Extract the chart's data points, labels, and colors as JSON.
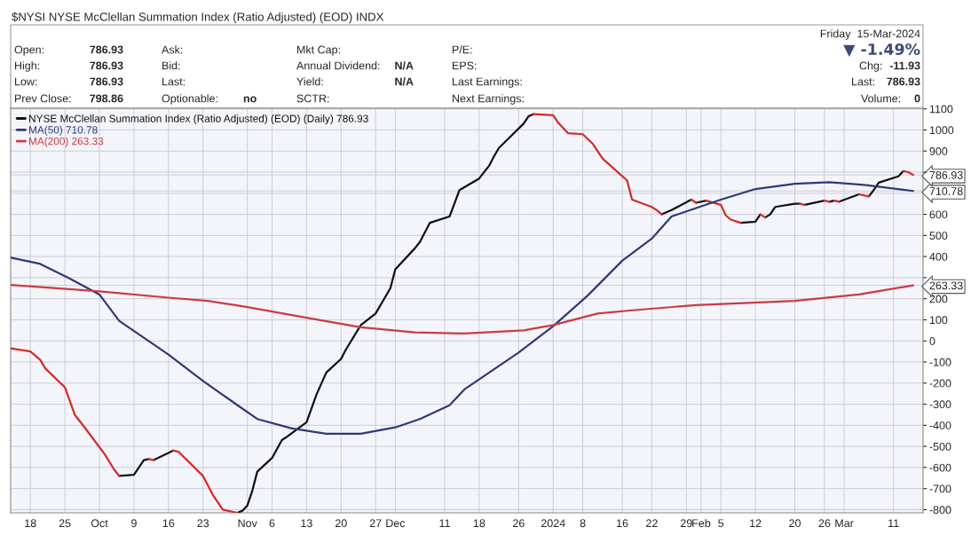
{
  "chart_data": {
    "type": "line",
    "title": "$NYSI NYSE McClellan Summation Index (Ratio Adjusted) (EOD) INDX",
    "annotations": [
      "Open:",
      "786.93",
      "High:",
      "786.93",
      "Low:",
      "786.93",
      "Prev Close:",
      "798.86",
      "Ask:",
      "Bid:",
      "Last:",
      "Optionable:",
      "no",
      "Mkt Cap:",
      "Annual Dividend:",
      "N/A",
      "Yield:",
      "N/A",
      "SCTR:",
      "P/E:",
      "EPS:",
      "Last Earnings:",
      "Next Earnings:",
      "Friday  15-Mar-2024",
      "▼ -1.49%",
      "Chg:",
      "-11.93",
      "Last:",
      "786.93",
      "Volume:",
      "0"
    ],
    "series": [
      {
        "name": "NYSE McClellan Summation Index (Ratio Adjusted) (EOD) (Daily) 786.93",
        "color": "#111111",
        "x": [
          "2023-10-30",
          "2023-10-31",
          "2023-11-01",
          "2023-11-02",
          "2023-11-03",
          "2023-11-06",
          "2023-11-08",
          "2023-11-09",
          "2023-11-13",
          "2023-11-15",
          "2023-11-17",
          "2023-11-20",
          "2023-11-21",
          "2023-11-24",
          "2023-11-27",
          "2023-11-30",
          "2023-12-01",
          "2023-12-05",
          "2023-12-06",
          "2023-12-08",
          "2023-12-12",
          "2023-12-14",
          "2023-12-18",
          "2023-12-20",
          "2023-12-21",
          "2023-12-22",
          "2023-12-27",
          "2023-12-28",
          "2023-12-29"
        ],
        "values": [
          -815,
          -805,
          -780,
          -710,
          -620,
          -555,
          -470,
          -455,
          -385,
          -255,
          -150,
          -85,
          -40,
          75,
          130,
          250,
          340,
          440,
          470,
          560,
          590,
          715,
          770,
          830,
          875,
          915,
          1030,
          1065,
          1075
        ]
      },
      {
        "color": "#111111",
        "x": [
          "2023-10-06",
          "2023-10-09",
          "2023-10-11",
          "2023-10-12"
        ],
        "values": [
          -640,
          -635,
          -565,
          -560
        ]
      },
      {
        "color": "#111111",
        "x": [
          "2023-10-13",
          "2023-10-17"
        ],
        "values": [
          -565,
          -520
        ]
      },
      {
        "color": "#111111",
        "x": [
          "2024-01-24",
          "2024-01-26",
          "2024-01-30"
        ],
        "values": [
          600,
          620,
          670
        ]
      },
      {
        "color": "#111111",
        "x": [
          "2024-01-31",
          "2024-02-02"
        ],
        "values": [
          655,
          665
        ]
      },
      {
        "color": "#111111",
        "x": [
          "2024-02-09",
          "2024-02-12",
          "2024-02-13"
        ],
        "values": [
          560,
          565,
          600
        ]
      },
      {
        "color": "#111111",
        "x": [
          "2024-02-14",
          "2024-02-15",
          "2024-02-16",
          "2024-02-20",
          "2024-02-21"
        ],
        "values": [
          585,
          600,
          635,
          650,
          650
        ]
      },
      {
        "color": "#111111",
        "x": [
          "2024-02-22",
          "2024-02-26"
        ],
        "values": [
          645,
          665
        ]
      },
      {
        "color": "#111111",
        "x": [
          "2024-02-27",
          "2024-02-28"
        ],
        "values": [
          660,
          665
        ]
      },
      {
        "color": "#111111",
        "x": [
          "2024-02-29",
          "2024-03-04"
        ],
        "values": [
          660,
          695
        ]
      },
      {
        "color": "#111111",
        "x": [
          "2024-03-06",
          "2024-03-07",
          "2024-03-08",
          "2024-03-12",
          "2024-03-13"
        ],
        "values": [
          685,
          715,
          750,
          780,
          805
        ]
      },
      {
        "color": "#d42a2a",
        "x": [
          "2023-09-14",
          "2023-09-18",
          "2023-09-20",
          "2023-09-21",
          "2023-09-25",
          "2023-09-27",
          "2023-09-29",
          "2023-10-03",
          "2023-10-05",
          "2023-10-06"
        ],
        "values": [
          -35,
          -50,
          -90,
          -130,
          -220,
          -350,
          -410,
          -535,
          -610,
          -640
        ]
      },
      {
        "color": "#d42a2a",
        "x": [
          "2023-10-12",
          "2023-10-13"
        ],
        "values": [
          -560,
          -565
        ]
      },
      {
        "color": "#d42a2a",
        "x": [
          "2023-10-17",
          "2023-10-18",
          "2023-10-23",
          "2023-10-25",
          "2023-10-27",
          "2023-10-30"
        ],
        "values": [
          -520,
          -525,
          -640,
          -730,
          -800,
          -815
        ]
      },
      {
        "color": "#d42a2a",
        "x": [
          "2023-12-29",
          "2024-01-02",
          "2024-01-03",
          "2024-01-05",
          "2024-01-08",
          "2024-01-10",
          "2024-01-12",
          "2024-01-17",
          "2024-01-18",
          "2024-01-22",
          "2024-01-23",
          "2024-01-24"
        ],
        "values": [
          1075,
          1070,
          1035,
          985,
          980,
          935,
          865,
          760,
          670,
          635,
          620,
          600
        ]
      },
      {
        "color": "#d42a2a",
        "x": [
          "2024-01-30",
          "2024-01-31"
        ],
        "values": [
          670,
          655
        ]
      },
      {
        "color": "#d42a2a",
        "x": [
          "2024-02-02",
          "2024-02-05",
          "2024-02-06",
          "2024-02-07",
          "2024-02-09"
        ],
        "values": [
          665,
          645,
          595,
          575,
          560
        ]
      },
      {
        "color": "#d42a2a",
        "x": [
          "2024-02-13",
          "2024-02-14"
        ],
        "values": [
          600,
          585
        ]
      },
      {
        "color": "#d42a2a",
        "x": [
          "2024-02-21",
          "2024-02-22"
        ],
        "values": [
          650,
          645
        ]
      },
      {
        "color": "#d42a2a",
        "x": [
          "2024-02-26",
          "2024-02-27"
        ],
        "values": [
          665,
          660
        ]
      },
      {
        "color": "#d42a2a",
        "x": [
          "2024-02-28",
          "2024-02-29"
        ],
        "values": [
          665,
          660
        ]
      },
      {
        "color": "#d42a2a",
        "x": [
          "2024-03-04",
          "2024-03-06"
        ],
        "values": [
          695,
          685
        ]
      },
      {
        "color": "#d42a2a",
        "x": [
          "2024-03-13",
          "2024-03-14",
          "2024-03-15"
        ],
        "values": [
          805,
          800,
          786.93
        ]
      },
      {
        "name": "MA(50) 710.78",
        "color": "#2e3a78",
        "x": [
          "2023-09-14",
          "2023-09-20",
          "2023-09-26",
          "2023-10-02",
          "2023-10-06",
          "2023-10-16",
          "2023-10-23",
          "2023-10-30",
          "2023-11-03",
          "2023-11-10",
          "2023-11-17",
          "2023-11-24",
          "2023-12-01",
          "2023-12-06",
          "2023-12-12",
          "2023-12-15",
          "2023-12-26",
          "2024-01-02",
          "2024-01-09",
          "2024-01-16",
          "2024-01-22",
          "2024-01-26",
          "2024-02-05",
          "2024-02-12",
          "2024-02-20",
          "2024-02-27",
          "2024-03-05",
          "2024-03-15"
        ],
        "values": [
          395,
          365,
          295,
          220,
          95,
          -65,
          -190,
          -305,
          -370,
          -415,
          -440,
          -440,
          -410,
          -370,
          -305,
          -230,
          -55,
          70,
          215,
          380,
          485,
          590,
          670,
          720,
          745,
          752,
          740,
          710.78
        ]
      },
      {
        "name": "MA(200) 263.33",
        "color": "#cc3a44",
        "x": [
          "2023-09-14",
          "2023-10-02",
          "2023-10-16",
          "2023-10-24",
          "2023-11-01",
          "2023-11-13",
          "2023-11-24",
          "2023-12-05",
          "2023-12-15",
          "2023-12-27",
          "2024-01-02",
          "2024-01-11",
          "2024-01-18",
          "2024-01-31",
          "2024-02-20",
          "2024-03-04",
          "2024-03-15"
        ],
        "values": [
          265,
          235,
          205,
          190,
          160,
          110,
          65,
          40,
          35,
          50,
          75,
          130,
          145,
          170,
          190,
          220,
          263.33
        ]
      }
    ],
    "xlim": [
      "2023-09-14",
      "2024-03-17"
    ],
    "xticks": [
      {
        "value": "2023-09-18",
        "label": "18"
      },
      {
        "value": "2023-09-25",
        "label": "25"
      },
      {
        "value": "2023-10-02",
        "label": "Oct"
      },
      {
        "value": "2023-10-09",
        "label": "9"
      },
      {
        "value": "2023-10-16",
        "label": "16"
      },
      {
        "value": "2023-10-23",
        "label": "23"
      },
      {
        "value": "2023-11-01",
        "label": "Nov"
      },
      {
        "value": "2023-11-06",
        "label": "6"
      },
      {
        "value": "2023-11-13",
        "label": "13"
      },
      {
        "value": "2023-11-20",
        "label": "20"
      },
      {
        "value": "2023-11-27",
        "label": "27"
      },
      {
        "value": "2023-12-01",
        "label": "Dec"
      },
      {
        "value": "2023-12-11",
        "label": "11"
      },
      {
        "value": "2023-12-18",
        "label": "18"
      },
      {
        "value": "2023-12-26",
        "label": "26"
      },
      {
        "value": "2024-01-02",
        "label": "2024"
      },
      {
        "value": "2024-01-08",
        "label": "8"
      },
      {
        "value": "2024-01-16",
        "label": "16"
      },
      {
        "value": "2024-01-22",
        "label": "22"
      },
      {
        "value": "2024-01-29",
        "label": "29"
      },
      {
        "value": "2024-02-01",
        "label": "Feb"
      },
      {
        "value": "2024-02-05",
        "label": "5"
      },
      {
        "value": "2024-02-12",
        "label": "12"
      },
      {
        "value": "2024-02-20",
        "label": "20"
      },
      {
        "value": "2024-02-26",
        "label": "26"
      },
      {
        "value": "2024-03-01",
        "label": "Mar"
      },
      {
        "value": "2024-03-11",
        "label": "11"
      }
    ],
    "ylim": [
      -815,
      1103
    ],
    "yticks": [
      -800,
      -700,
      -600,
      -500,
      -400,
      -300,
      -200,
      -100,
      0,
      100,
      200,
      {
        "value": 263.33,
        "label": "263.33"
      },
      {
        "value": 300,
        "label": null
      },
      400,
      500,
      600,
      {
        "value": 700,
        "label": null
      },
      {
        "value": 710.78,
        "label": "710.78"
      },
      {
        "value": 786.93,
        "label": "786.93"
      },
      {
        "value": 800,
        "label": null
      },
      900,
      1000,
      1100
    ],
    "grid": true,
    "legend": "top left"
  }
}
